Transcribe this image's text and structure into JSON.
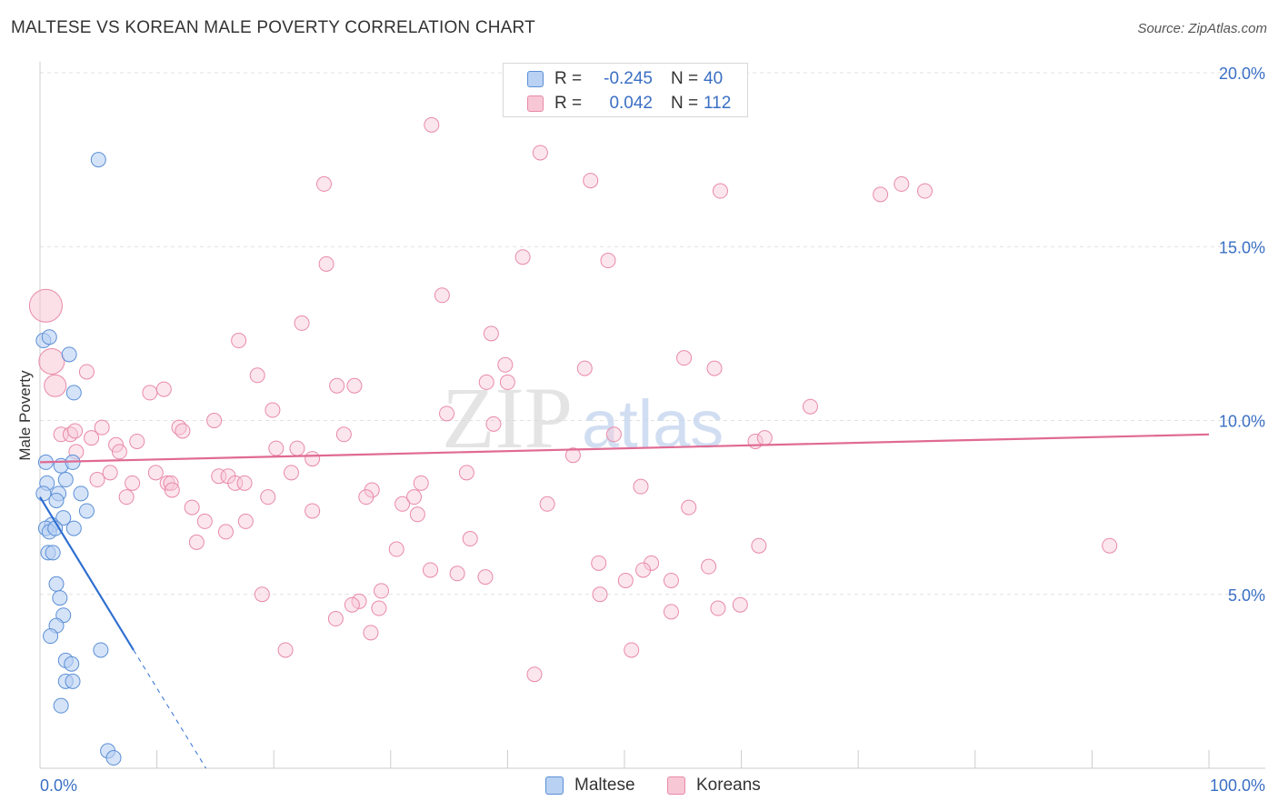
{
  "header": {
    "title": "MALTESE VS KOREAN MALE POVERTY CORRELATION CHART",
    "source": "Source: ZipAtlas.com"
  },
  "watermark": {
    "part1": "ZIP",
    "part2": "atlas"
  },
  "legend": {
    "r_label": "R =",
    "n_label": "N =",
    "rows": [
      {
        "name": "Maltese",
        "r": "-0.245",
        "n": "40",
        "color": "#5b8fd6",
        "fill": "#b9d1f3"
      },
      {
        "name": "Koreans",
        "r": "0.042",
        "n": "112",
        "color": "#e88aa8",
        "fill": "#f8c7d6"
      }
    ]
  },
  "chart_data": {
    "type": "scatter",
    "title": "MALTESE VS KOREAN MALE POVERTY CORRELATION CHART",
    "xlabel": "",
    "ylabel": "Male Poverty",
    "xlim": [
      0,
      100
    ],
    "ylim": [
      0,
      20
    ],
    "x_tick_labels": [
      {
        "value": 0,
        "label": "0.0%"
      },
      {
        "value": 100,
        "label": "100.0%"
      }
    ],
    "y_tick_labels": [
      {
        "value": 5,
        "label": "5.0%"
      },
      {
        "value": 10,
        "label": "10.0%"
      },
      {
        "value": 15,
        "label": "15.0%"
      },
      {
        "value": 20,
        "label": "20.0%"
      }
    ],
    "x_minor_ticks": [
      0,
      10,
      20,
      30,
      40,
      50,
      60,
      70,
      80,
      90,
      100
    ],
    "grid": true,
    "series": [
      {
        "name": "Maltese",
        "color": "#5b8fd6",
        "fill": "#b9d1f3",
        "trend": {
          "x0": 0,
          "y0": 7.8,
          "x1": 8.0,
          "y1": 3.4,
          "dash_to_x": 14.2,
          "dash_to_y": 0
        },
        "points": [
          [
            5.0,
            17.5
          ],
          [
            0.3,
            12.3
          ],
          [
            0.8,
            12.4
          ],
          [
            2.5,
            11.9
          ],
          [
            2.9,
            10.8
          ],
          [
            0.5,
            8.8
          ],
          [
            1.8,
            8.7
          ],
          [
            2.8,
            8.8
          ],
          [
            0.6,
            8.2
          ],
          [
            2.2,
            8.3
          ],
          [
            0.3,
            7.9
          ],
          [
            1.6,
            7.9
          ],
          [
            3.5,
            7.9
          ],
          [
            1.4,
            7.7
          ],
          [
            4.0,
            7.4
          ],
          [
            2.0,
            7.2
          ],
          [
            1.0,
            7.0
          ],
          [
            0.5,
            6.9
          ],
          [
            0.8,
            6.8
          ],
          [
            1.3,
            6.9
          ],
          [
            2.9,
            6.9
          ],
          [
            0.7,
            6.2
          ],
          [
            1.1,
            6.2
          ],
          [
            1.4,
            5.3
          ],
          [
            1.7,
            4.9
          ],
          [
            2.0,
            4.4
          ],
          [
            1.4,
            4.1
          ],
          [
            0.9,
            3.8
          ],
          [
            5.2,
            3.4
          ],
          [
            2.2,
            3.1
          ],
          [
            2.7,
            3.0
          ],
          [
            2.2,
            2.5
          ],
          [
            2.8,
            2.5
          ],
          [
            1.8,
            1.8
          ],
          [
            5.8,
            0.5
          ],
          [
            6.3,
            0.3
          ]
        ]
      },
      {
        "name": "Koreans",
        "color": "#e88aa8",
        "fill": "#f8c7d6",
        "trend": {
          "x0": 0,
          "y0": 8.8,
          "x1": 100,
          "y1": 9.6
        },
        "big_points": [
          {
            "x": 0.5,
            "y": 13.3,
            "size": "xl"
          },
          {
            "x": 1.0,
            "y": 11.7,
            "size": "l"
          },
          {
            "x": 1.3,
            "y": 11.0,
            "size": "m"
          }
        ],
        "points": [
          [
            33.5,
            18.5
          ],
          [
            42.8,
            17.7
          ],
          [
            47.1,
            16.9
          ],
          [
            24.3,
            16.8
          ],
          [
            58.2,
            16.6
          ],
          [
            71.9,
            16.5
          ],
          [
            73.7,
            16.8
          ],
          [
            75.7,
            16.6
          ],
          [
            41.3,
            14.7
          ],
          [
            48.6,
            14.6
          ],
          [
            24.5,
            14.5
          ],
          [
            34.4,
            13.6
          ],
          [
            22.4,
            12.8
          ],
          [
            38.6,
            12.5
          ],
          [
            17.0,
            12.3
          ],
          [
            55.1,
            11.8
          ],
          [
            39.8,
            11.6
          ],
          [
            46.6,
            11.5
          ],
          [
            57.7,
            11.5
          ],
          [
            4.0,
            11.4
          ],
          [
            18.6,
            11.3
          ],
          [
            38.2,
            11.1
          ],
          [
            40.0,
            11.1
          ],
          [
            25.4,
            11.0
          ],
          [
            26.9,
            11.0
          ],
          [
            9.4,
            10.8
          ],
          [
            10.6,
            10.9
          ],
          [
            19.9,
            10.3
          ],
          [
            34.8,
            10.2
          ],
          [
            65.9,
            10.4
          ],
          [
            14.9,
            10.0
          ],
          [
            38.8,
            9.9
          ],
          [
            5.3,
            9.8
          ],
          [
            11.9,
            9.8
          ],
          [
            12.2,
            9.7
          ],
          [
            1.8,
            9.6
          ],
          [
            2.6,
            9.6
          ],
          [
            3.0,
            9.7
          ],
          [
            4.4,
            9.5
          ],
          [
            26.0,
            9.6
          ],
          [
            49.1,
            9.6
          ],
          [
            61.2,
            9.4
          ],
          [
            62.0,
            9.5
          ],
          [
            6.5,
            9.3
          ],
          [
            8.3,
            9.4
          ],
          [
            20.2,
            9.2
          ],
          [
            22.0,
            9.2
          ],
          [
            3.1,
            9.1
          ],
          [
            6.8,
            9.1
          ],
          [
            23.3,
            8.9
          ],
          [
            45.6,
            9.0
          ],
          [
            6.0,
            8.5
          ],
          [
            9.9,
            8.5
          ],
          [
            21.5,
            8.5
          ],
          [
            36.5,
            8.5
          ],
          [
            4.9,
            8.3
          ],
          [
            15.3,
            8.4
          ],
          [
            16.1,
            8.4
          ],
          [
            7.9,
            8.2
          ],
          [
            10.9,
            8.2
          ],
          [
            11.2,
            8.2
          ],
          [
            16.7,
            8.2
          ],
          [
            17.5,
            8.2
          ],
          [
            32.6,
            8.2
          ],
          [
            51.4,
            8.1
          ],
          [
            11.3,
            8.0
          ],
          [
            28.4,
            8.0
          ],
          [
            7.4,
            7.8
          ],
          [
            19.5,
            7.8
          ],
          [
            27.9,
            7.8
          ],
          [
            31.0,
            7.6
          ],
          [
            32.0,
            7.8
          ],
          [
            43.4,
            7.6
          ],
          [
            13.0,
            7.5
          ],
          [
            55.5,
            7.5
          ],
          [
            23.3,
            7.4
          ],
          [
            32.3,
            7.3
          ],
          [
            14.1,
            7.1
          ],
          [
            17.6,
            7.1
          ],
          [
            15.9,
            6.8
          ],
          [
            13.4,
            6.5
          ],
          [
            36.8,
            6.6
          ],
          [
            61.5,
            6.4
          ],
          [
            91.5,
            6.4
          ],
          [
            30.5,
            6.3
          ],
          [
            47.8,
            5.9
          ],
          [
            52.3,
            5.9
          ],
          [
            57.2,
            5.8
          ],
          [
            33.4,
            5.7
          ],
          [
            51.6,
            5.7
          ],
          [
            35.7,
            5.6
          ],
          [
            38.1,
            5.5
          ],
          [
            50.1,
            5.4
          ],
          [
            54.0,
            5.4
          ],
          [
            29.2,
            5.1
          ],
          [
            19.0,
            5.0
          ],
          [
            47.9,
            5.0
          ],
          [
            27.3,
            4.8
          ],
          [
            26.7,
            4.7
          ],
          [
            59.9,
            4.7
          ],
          [
            58.0,
            4.6
          ],
          [
            29.0,
            4.6
          ],
          [
            54.0,
            4.5
          ],
          [
            25.3,
            4.3
          ],
          [
            28.3,
            3.9
          ],
          [
            21.0,
            3.4
          ],
          [
            50.6,
            3.4
          ],
          [
            42.3,
            2.7
          ]
        ]
      }
    ]
  }
}
